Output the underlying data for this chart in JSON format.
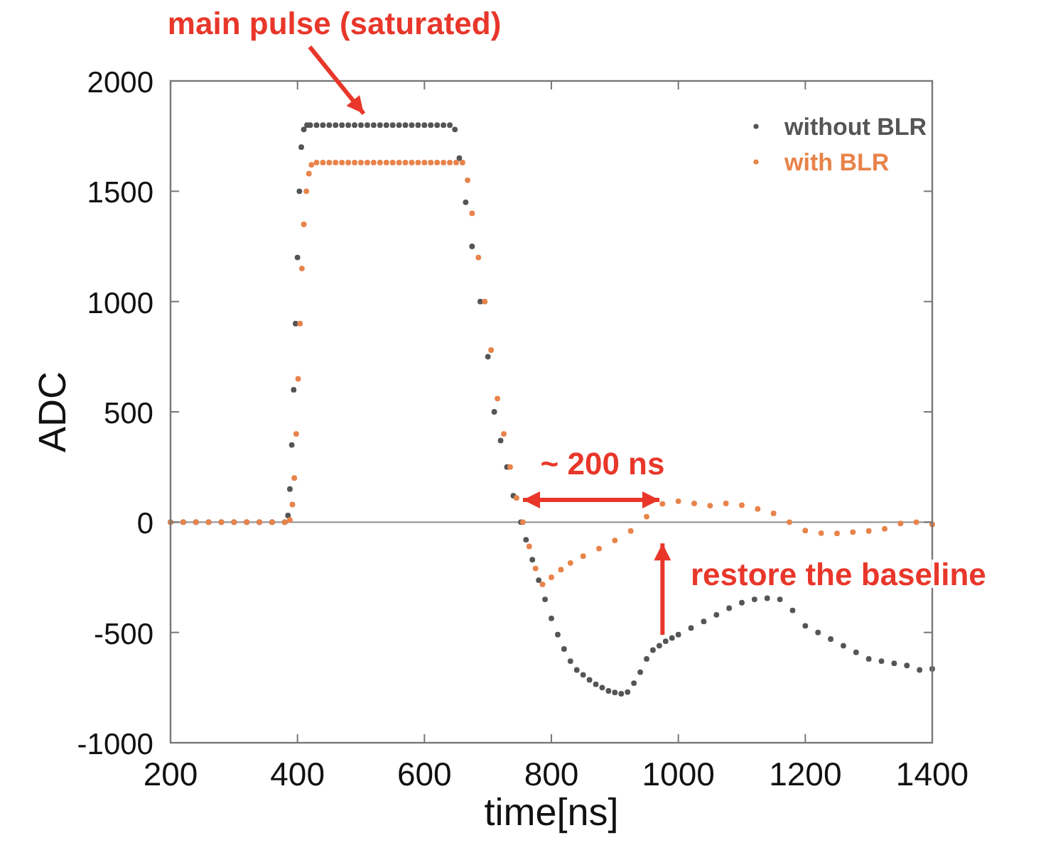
{
  "chart_data": {
    "type": "scatter",
    "xlabel": "time[ns]",
    "ylabel": "ADC",
    "xlim": [
      200,
      1400
    ],
    "ylim": [
      -1000,
      2000
    ],
    "xticks": [
      200,
      400,
      600,
      800,
      1000,
      1200,
      1400
    ],
    "yticks": [
      -1000,
      -500,
      0,
      500,
      1000,
      1500,
      2000
    ],
    "grid": false,
    "legend": "top right",
    "marker": "circle",
    "ref_lines": [
      {
        "axis": "y",
        "value": 0,
        "color": "#999999"
      }
    ],
    "annotations": [
      {
        "text": "main pulse (saturated)",
        "x": 520,
        "y": 1800
      },
      "~ 200 ns",
      {
        "text": "restore the baseline",
        "x": 975,
        "y": 0
      }
    ],
    "series": [
      {
        "name": "without BLR",
        "color": "#555555",
        "x": [
          200,
          220,
          240,
          260,
          280,
          300,
          320,
          340,
          360,
          380,
          385,
          388,
          391,
          394,
          397,
          400,
          403,
          406,
          410,
          415,
          420,
          430,
          440,
          450,
          460,
          470,
          480,
          490,
          500,
          510,
          520,
          530,
          540,
          550,
          560,
          570,
          580,
          590,
          600,
          610,
          620,
          630,
          640,
          648,
          655,
          665,
          675,
          688,
          700,
          710,
          720,
          730,
          740,
          752,
          760,
          770,
          780,
          790,
          800,
          810,
          820,
          830,
          840,
          850,
          860,
          870,
          880,
          890,
          900,
          910,
          920,
          930,
          940,
          950,
          960,
          970,
          980,
          990,
          1000,
          1020,
          1040,
          1060,
          1080,
          1100,
          1120,
          1140,
          1160,
          1180,
          1200,
          1220,
          1240,
          1260,
          1280,
          1300,
          1320,
          1340,
          1360,
          1380,
          1400
        ],
        "values": [
          0,
          0,
          0,
          0,
          0,
          0,
          0,
          0,
          0,
          0,
          30,
          150,
          350,
          600,
          900,
          1200,
          1500,
          1700,
          1780,
          1800,
          1800,
          1800,
          1800,
          1800,
          1800,
          1800,
          1800,
          1800,
          1800,
          1800,
          1800,
          1800,
          1800,
          1800,
          1800,
          1800,
          1800,
          1800,
          1800,
          1800,
          1800,
          1800,
          1800,
          1780,
          1650,
          1450,
          1250,
          1000,
          750,
          500,
          370,
          250,
          120,
          0,
          -80,
          -170,
          -263,
          -350,
          -436,
          -510,
          -575,
          -630,
          -670,
          -692,
          -715,
          -735,
          -750,
          -765,
          -772,
          -778,
          -770,
          -730,
          -680,
          -620,
          -580,
          -560,
          -540,
          -525,
          -510,
          -480,
          -450,
          -420,
          -390,
          -365,
          -350,
          -345,
          -350,
          -400,
          -470,
          -500,
          -530,
          -560,
          -590,
          -620,
          -630,
          -640,
          -650,
          -670,
          -665
        ]
      },
      {
        "name": "with BLR",
        "color": "#e8834a",
        "x": [
          200,
          220,
          240,
          260,
          280,
          300,
          320,
          340,
          360,
          380,
          388,
          392,
          395,
          398,
          401,
          404,
          407,
          410,
          414,
          418,
          422,
          430,
          440,
          450,
          460,
          470,
          480,
          490,
          500,
          510,
          520,
          530,
          540,
          550,
          560,
          570,
          580,
          590,
          600,
          610,
          620,
          630,
          640,
          650,
          660,
          668,
          675,
          685,
          695,
          705,
          715,
          725,
          735,
          745,
          755,
          765,
          775,
          786,
          800,
          815,
          830,
          850,
          875,
          900,
          925,
          950,
          975,
          1000,
          1025,
          1050,
          1075,
          1100,
          1125,
          1150,
          1175,
          1200,
          1225,
          1250,
          1275,
          1300,
          1325,
          1350,
          1375,
          1400
        ],
        "values": [
          0,
          0,
          0,
          0,
          0,
          0,
          0,
          0,
          0,
          0,
          10,
          80,
          200,
          400,
          650,
          900,
          1150,
          1350,
          1500,
          1580,
          1620,
          1630,
          1630,
          1630,
          1630,
          1630,
          1630,
          1630,
          1630,
          1630,
          1630,
          1630,
          1630,
          1630,
          1630,
          1630,
          1630,
          1630,
          1630,
          1630,
          1630,
          1630,
          1630,
          1630,
          1630,
          1550,
          1400,
          1200,
          1000,
          780,
          560,
          400,
          250,
          110,
          0,
          -110,
          -210,
          -282,
          -250,
          -215,
          -185,
          -154,
          -120,
          -83,
          -40,
          25,
          83,
          95,
          85,
          75,
          85,
          77,
          60,
          40,
          0,
          -38,
          -50,
          -51,
          -45,
          -40,
          -30,
          -6,
          0,
          -10
        ]
      }
    ]
  }
}
